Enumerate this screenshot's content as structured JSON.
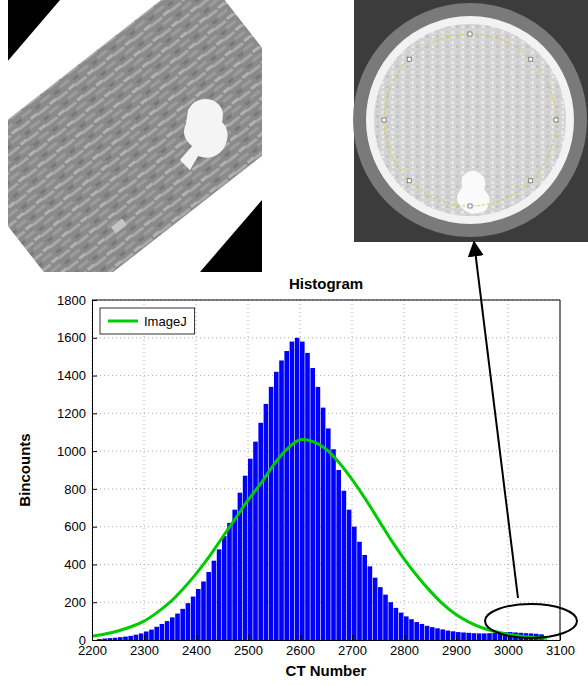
{
  "chart_data": {
    "type": "histogram",
    "title": "Histogram",
    "x_label": "CT Number",
    "y_label": "Bincounts",
    "bins": [
      2210,
      2220,
      2230,
      2240,
      2250,
      2260,
      2270,
      2280,
      2290,
      2300,
      2310,
      2320,
      2330,
      2340,
      2350,
      2360,
      2370,
      2380,
      2390,
      2400,
      2410,
      2420,
      2430,
      2440,
      2450,
      2460,
      2470,
      2480,
      2490,
      2500,
      2510,
      2520,
      2530,
      2540,
      2550,
      2560,
      2570,
      2580,
      2590,
      2600,
      2610,
      2620,
      2630,
      2640,
      2650,
      2660,
      2670,
      2680,
      2690,
      2700,
      2710,
      2720,
      2730,
      2740,
      2750,
      2760,
      2770,
      2780,
      2790,
      2800,
      2810,
      2820,
      2830,
      2840,
      2850,
      2860,
      2870,
      2880,
      2890,
      2900,
      2910,
      2920,
      2930,
      2940,
      2950,
      2960,
      2970,
      2980,
      2990,
      3000,
      3010,
      3020,
      3030,
      3040,
      3050,
      3060,
      3070
    ],
    "counts": [
      5,
      8,
      10,
      12,
      15,
      18,
      22,
      28,
      35,
      45,
      55,
      70,
      85,
      100,
      120,
      140,
      165,
      195,
      230,
      270,
      310,
      360,
      420,
      480,
      550,
      620,
      690,
      780,
      870,
      960,
      1050,
      1150,
      1250,
      1340,
      1420,
      1480,
      1530,
      1580,
      1600,
      1580,
      1520,
      1440,
      1340,
      1230,
      1120,
      1010,
      900,
      790,
      690,
      600,
      520,
      450,
      390,
      330,
      280,
      240,
      200,
      170,
      145,
      125,
      110,
      95,
      85,
      75,
      68,
      62,
      56,
      50,
      46,
      42,
      40,
      38,
      36,
      35,
      35,
      36,
      38,
      40,
      42,
      42,
      40,
      38,
      36,
      35,
      33,
      30
    ],
    "color": "#0000ff",
    "series": [
      {
        "name": "ImageJ",
        "type": "line",
        "color": "#00cc00",
        "x": [
          2200,
          2225,
          2250,
          2275,
          2300,
          2325,
          2350,
          2375,
          2400,
          2425,
          2450,
          2475,
          2500,
          2525,
          2550,
          2575,
          2600,
          2625,
          2650,
          2675,
          2700,
          2725,
          2750,
          2775,
          2800,
          2825,
          2850,
          2875,
          2900,
          2925,
          2950,
          2975,
          3000,
          3025,
          3050,
          3075
        ],
        "values": [
          20,
          32,
          48,
          70,
          100,
          145,
          200,
          270,
          350,
          440,
          540,
          640,
          740,
          830,
          930,
          1010,
          1060,
          1050,
          1010,
          940,
          850,
          750,
          640,
          530,
          430,
          340,
          260,
          190,
          135,
          95,
          65,
          45,
          30,
          20,
          13,
          9
        ]
      }
    ],
    "xlim": [
      2200,
      3100
    ],
    "ylim": [
      0,
      1800
    ],
    "xticks": [
      2200,
      2300,
      2400,
      2500,
      2600,
      2700,
      2800,
      2900,
      3000,
      3100
    ],
    "yticks": [
      0,
      200,
      400,
      600,
      800,
      1000,
      1200,
      1400,
      1600,
      1800
    ],
    "grid": true,
    "legend": "upper left"
  }
}
